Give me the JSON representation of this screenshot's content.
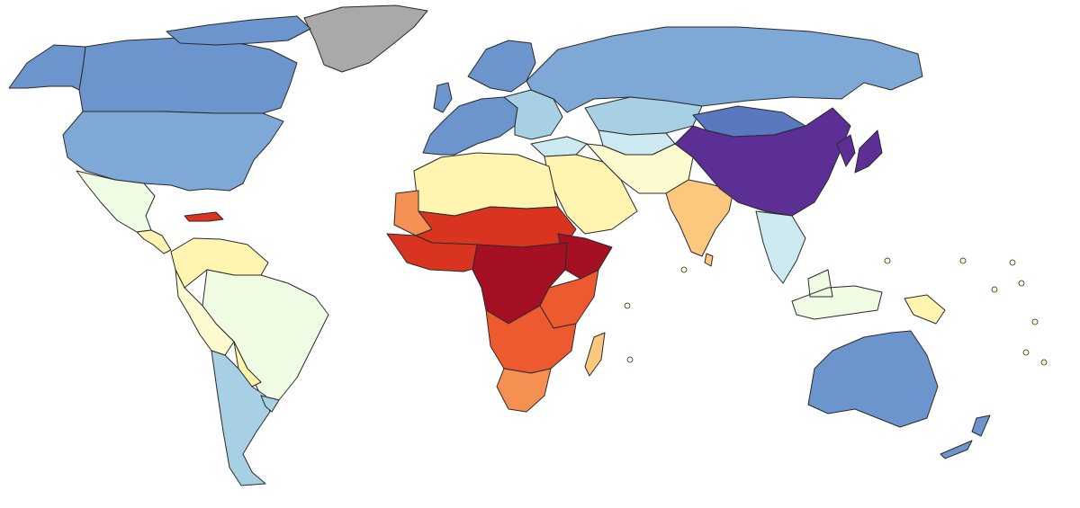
{
  "map": {
    "type": "choropleth-world",
    "text": "",
    "palette": {
      "no_data": "#a9a9a9",
      "c1_deep_red": "#a50f24",
      "c2_red": "#d9341f",
      "c3_orange_red": "#ee5a30",
      "c4_orange": "#f68f52",
      "c5_light_orange": "#fbc87e",
      "c6_pale_yellow": "#fff4b0",
      "c7_cream": "#fbfbcf",
      "c8_pale_green": "#effbe2",
      "c9_pale_blue": "#cde9f2",
      "c10_light_blue": "#a7d0e5",
      "c11_steel_blue": "#7ea8d5",
      "c12_blue": "#6b95cc",
      "c13_dark_blue": "#5a78c0",
      "c14_purple": "#5b2f93"
    },
    "regions": [
      {
        "id": "greenland",
        "color_key": "no_data"
      },
      {
        "id": "canada",
        "color_key": "c12_blue"
      },
      {
        "id": "alaska",
        "color_key": "c12_blue"
      },
      {
        "id": "usa",
        "color_key": "c11_steel_blue"
      },
      {
        "id": "mexico",
        "color_key": "c8_pale_green"
      },
      {
        "id": "central-america",
        "color_key": "c6_pale_yellow"
      },
      {
        "id": "caribbean",
        "color_key": "c2_red"
      },
      {
        "id": "colombia-venezuela",
        "color_key": "c6_pale_yellow"
      },
      {
        "id": "brazil",
        "color_key": "c8_pale_green"
      },
      {
        "id": "peru-bolivia",
        "color_key": "c7_cream"
      },
      {
        "id": "argentina-chile",
        "color_key": "c10_light_blue"
      },
      {
        "id": "paraguay",
        "color_key": "c6_pale_yellow"
      },
      {
        "id": "uruguay",
        "color_key": "c10_light_blue"
      },
      {
        "id": "russia",
        "color_key": "c11_steel_blue"
      },
      {
        "id": "scandinavia",
        "color_key": "c12_blue"
      },
      {
        "id": "western-europe",
        "color_key": "c12_blue"
      },
      {
        "id": "eastern-europe",
        "color_key": "c10_light_blue"
      },
      {
        "id": "kazakhstan",
        "color_key": "c10_light_blue"
      },
      {
        "id": "central-asia",
        "color_key": "c9_pale_blue"
      },
      {
        "id": "turkey",
        "color_key": "c9_pale_blue"
      },
      {
        "id": "middle-east",
        "color_key": "c6_pale_yellow"
      },
      {
        "id": "iran-afghanistan-pakistan",
        "color_key": "c7_cream"
      },
      {
        "id": "india",
        "color_key": "c5_light_orange"
      },
      {
        "id": "china",
        "color_key": "c14_purple"
      },
      {
        "id": "mongolia",
        "color_key": "c13_dark_blue"
      },
      {
        "id": "japan-korea",
        "color_key": "c14_purple"
      },
      {
        "id": "southeast-asia",
        "color_key": "c9_pale_blue"
      },
      {
        "id": "indonesia",
        "color_key": "c8_pale_green"
      },
      {
        "id": "papua-new-guinea",
        "color_key": "c6_pale_yellow"
      },
      {
        "id": "australia",
        "color_key": "c12_blue"
      },
      {
        "id": "new-zealand",
        "color_key": "c12_blue"
      },
      {
        "id": "north-africa",
        "color_key": "c6_pale_yellow"
      },
      {
        "id": "mauritania",
        "color_key": "c4_orange"
      },
      {
        "id": "sahel",
        "color_key": "c2_red"
      },
      {
        "id": "west-africa",
        "color_key": "c2_red"
      },
      {
        "id": "ethiopia-somalia",
        "color_key": "c1_deep_red"
      },
      {
        "id": "central-africa",
        "color_key": "c1_deep_red"
      },
      {
        "id": "east-africa",
        "color_key": "c3_orange_red"
      },
      {
        "id": "southern-africa",
        "color_key": "c3_orange_red"
      },
      {
        "id": "south-africa",
        "color_key": "c4_orange"
      },
      {
        "id": "madagascar",
        "color_key": "c5_light_orange"
      },
      {
        "id": "sri-lanka",
        "color_key": "c5_light_orange"
      },
      {
        "id": "pacific-islands",
        "color_key": "c7_cream"
      }
    ]
  }
}
